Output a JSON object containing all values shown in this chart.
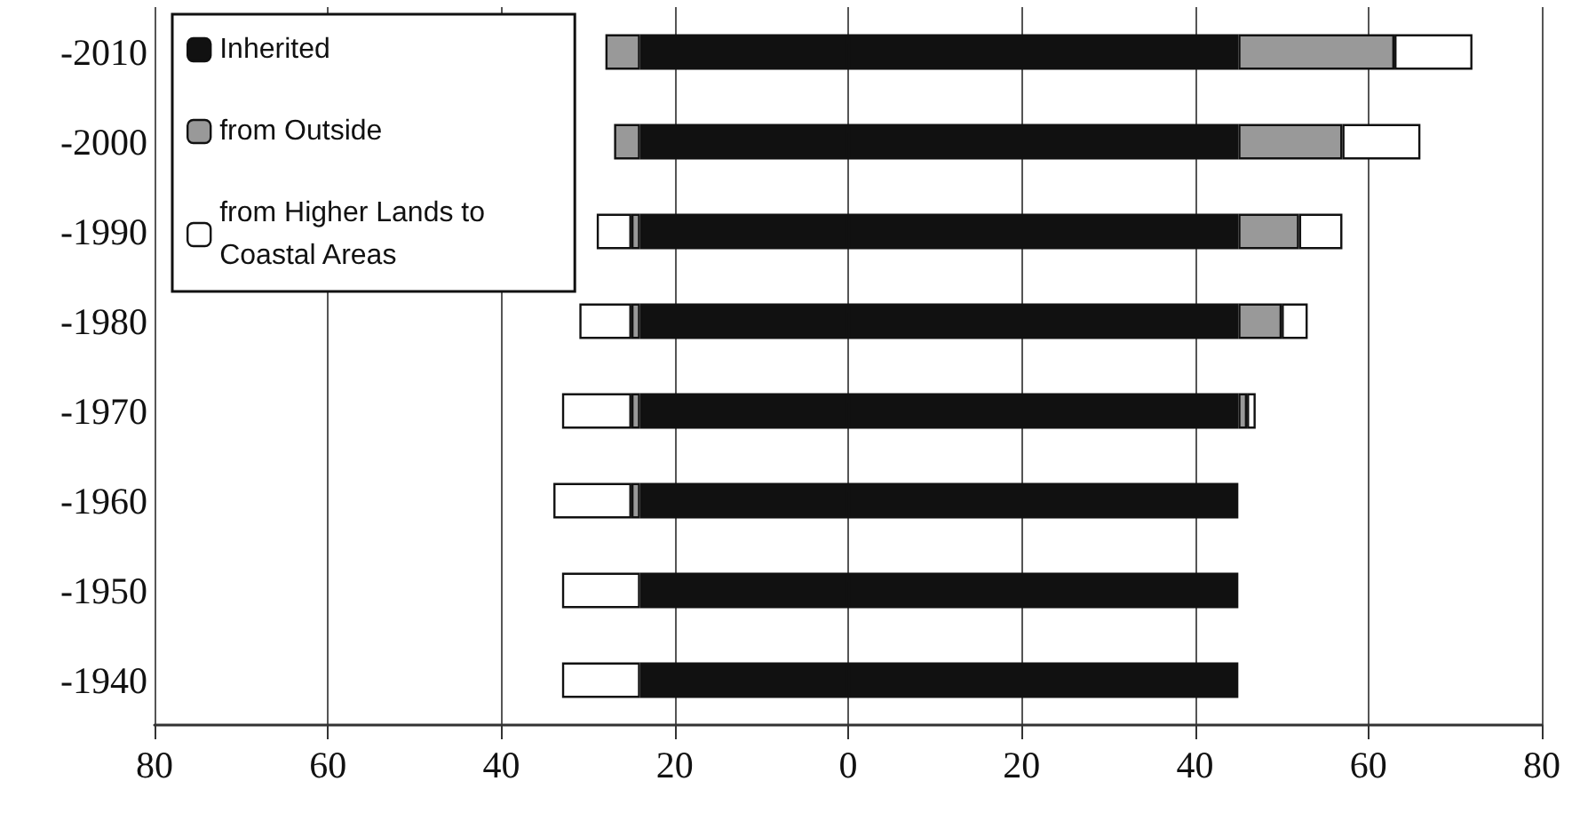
{
  "chart_data": {
    "type": "bar",
    "orientation": "horizontal",
    "stacked": true,
    "categories": [
      "-2010",
      "-2000",
      "-1990",
      "-1980",
      "-1970",
      "-1960",
      "-1950",
      "-1940"
    ],
    "series": [
      {
        "color": "#111111",
        "values": [
          -24,
          -24,
          -24,
          -24,
          -24,
          -24,
          -24,
          -24
        ]
      },
      {
        "name": "Inherited",
        "color": "#111111",
        "values": [
          45,
          45,
          45,
          45,
          45,
          45,
          45,
          45
        ]
      },
      {
        "color": "#999999",
        "values": [
          -4,
          -3,
          -1,
          -1,
          -1,
          -1,
          0,
          0
        ]
      },
      {
        "name": "from Outside",
        "color": "#999999",
        "values": [
          18,
          12,
          7,
          5,
          1,
          0,
          0,
          0
        ]
      },
      {
        "color": "#ffffff",
        "values": [
          0,
          0,
          -4,
          -6,
          -8,
          -9,
          -9,
          -9
        ]
      },
      {
        "name": "from Higher Lands to Coastal Areas",
        "color": "#ffffff",
        "values": [
          9,
          9,
          5,
          3,
          1,
          0,
          0,
          0
        ]
      }
    ],
    "xlim": [
      -80,
      80
    ],
    "xticks": [
      {
        "value": -80,
        "label": "80"
      },
      {
        "value": -60,
        "label": "60"
      },
      {
        "value": -40,
        "label": "40"
      },
      {
        "value": -20,
        "label": "20"
      },
      0,
      20,
      40,
      60,
      80
    ],
    "grid": "x",
    "legend": "top left"
  }
}
